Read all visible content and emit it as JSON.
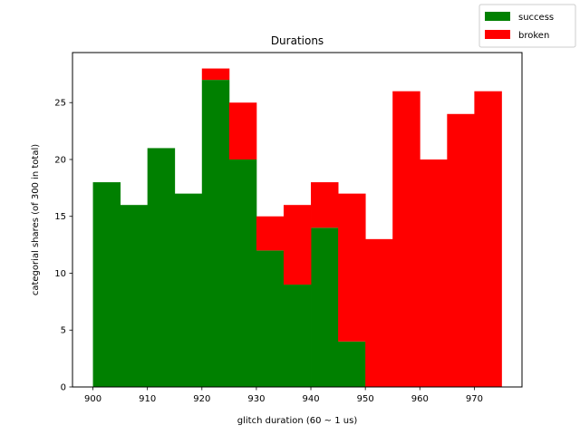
{
  "chart_data": {
    "type": "bar",
    "stacked": true,
    "title": "Durations",
    "xlabel": "glitch duration (60 ~ 1 us)",
    "ylabel": "categorial shares (of 300 in total)",
    "bin_width": 5,
    "x": [
      900,
      905,
      910,
      915,
      920,
      925,
      930,
      935,
      940,
      945,
      950,
      955,
      960,
      965,
      970
    ],
    "series": [
      {
        "name": "success",
        "color": "#008000",
        "values": [
          18,
          16,
          21,
          17,
          27,
          20,
          12,
          9,
          14,
          4,
          0,
          0,
          0,
          0,
          0
        ]
      },
      {
        "name": "broken",
        "color": "#ff0000",
        "values": [
          0,
          0,
          0,
          0,
          1,
          5,
          3,
          7,
          4,
          13,
          13,
          26,
          20,
          24,
          26
        ]
      }
    ],
    "xlim": [
      896.25,
      978.75
    ],
    "ylim": [
      0,
      29.4
    ],
    "xticks": [
      "900",
      "910",
      "920",
      "930",
      "940",
      "950",
      "960",
      "970"
    ],
    "yticks": [
      "0",
      "5",
      "10",
      "15",
      "20",
      "25"
    ],
    "grid": false,
    "legend": "top-right"
  }
}
